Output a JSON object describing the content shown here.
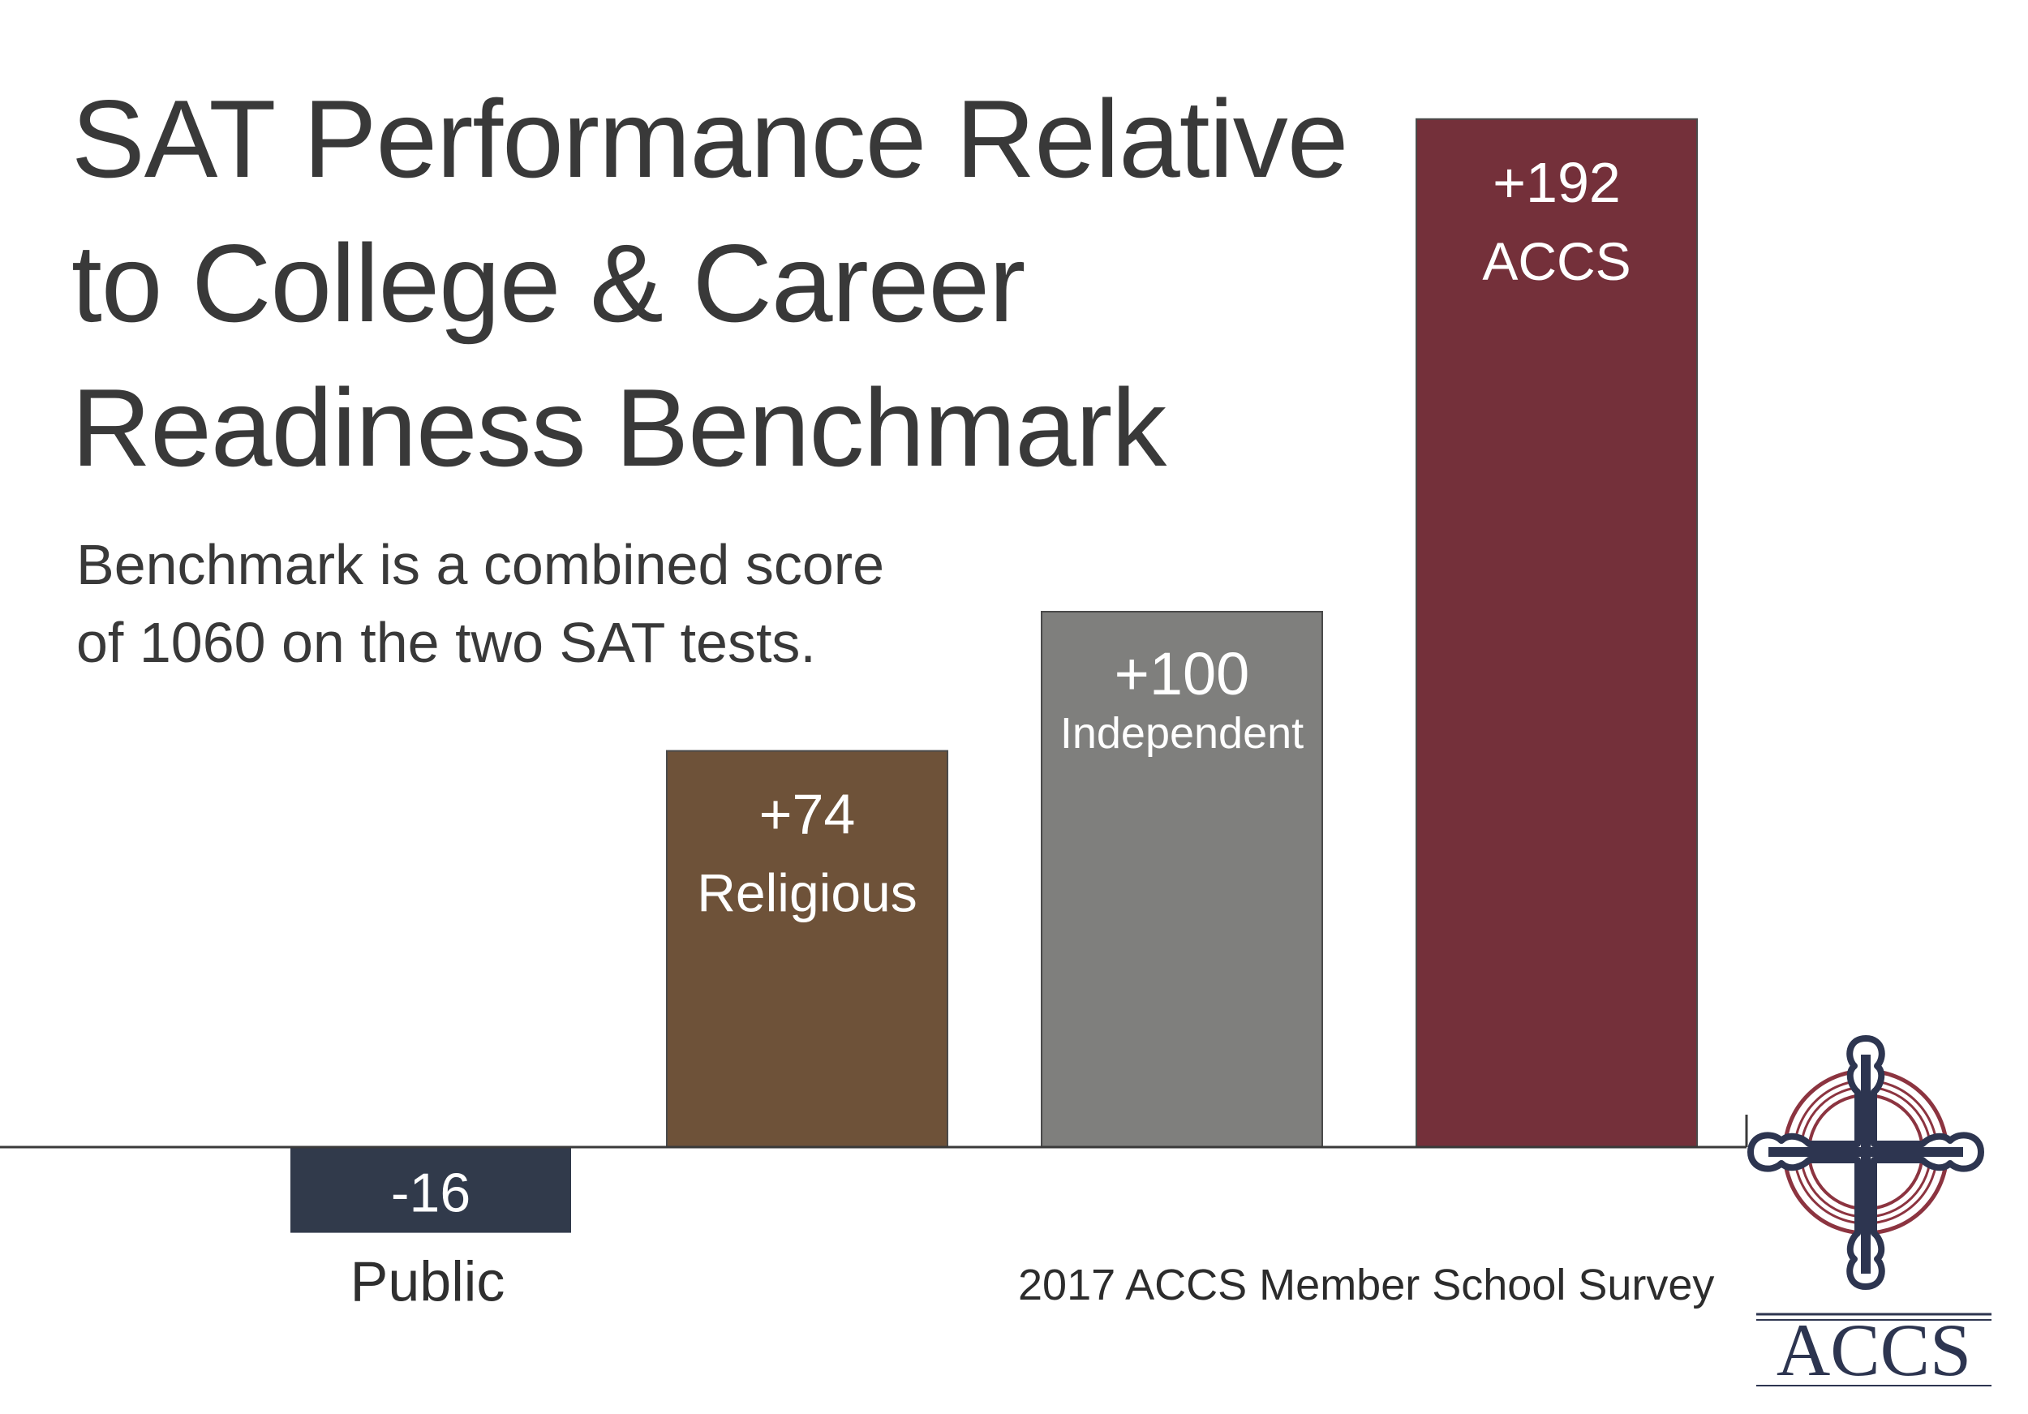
{
  "title_lines": [
    "SAT Performance Relative",
    "to College & Career",
    "Readiness Benchmark"
  ],
  "subtitle_lines": [
    "Benchmark is a combined score",
    "of 1060 on the two SAT tests."
  ],
  "source": "2017 ACCS Member School Survey",
  "logo": {
    "text": "ACCS",
    "icon": "cross-emblem-icon"
  },
  "colors": {
    "Public": "#313a4b",
    "Religious": "#6e5239",
    "Independent": "#7f7f7d",
    "ACCS": "#74303a",
    "axis": "#3a3a3a"
  },
  "chart_data": {
    "type": "bar",
    "categories": [
      "Public",
      "Religious",
      "Independent",
      "ACCS"
    ],
    "values": [
      -16,
      74,
      100,
      192
    ],
    "value_labels": [
      "-16",
      "+74",
      "+100",
      "+192"
    ],
    "title": "SAT Performance Relative to College & Career Readiness Benchmark",
    "xlabel": "",
    "ylabel": "",
    "grid": false,
    "legend": "none"
  }
}
